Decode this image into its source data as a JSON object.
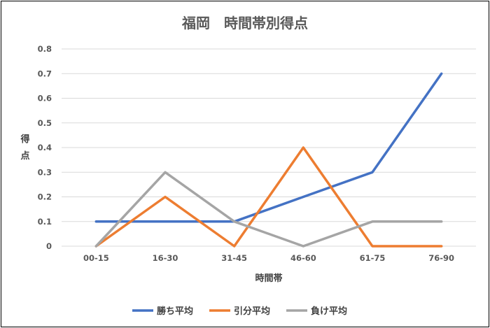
{
  "chart_data": {
    "type": "line",
    "title": "福岡　時間帯別得点",
    "xlabel": "時間帯",
    "ylabel": "得点",
    "categories": [
      "00-15",
      "16-30",
      "31-45",
      "46-60",
      "61-75",
      "76-90"
    ],
    "ylim": [
      0,
      0.8
    ],
    "yticks": [
      "0",
      "0.1",
      "0.2",
      "0.3",
      "0.4",
      "0.5",
      "0.6",
      "0.7",
      "0.8"
    ],
    "grid": true,
    "legend_position": "bottom",
    "series": [
      {
        "name": "勝ち平均",
        "color": "#4472C4",
        "values": [
          0.1,
          0.1,
          0.1,
          0.2,
          0.3,
          0.7
        ]
      },
      {
        "name": "引分平均",
        "color": "#ED7D31",
        "values": [
          0,
          0.2,
          0,
          0.4,
          0,
          0
        ]
      },
      {
        "name": "負け平均",
        "color": "#A5A5A5",
        "values": [
          0,
          0.3,
          0.1,
          0,
          0.1,
          0.1
        ]
      }
    ]
  }
}
